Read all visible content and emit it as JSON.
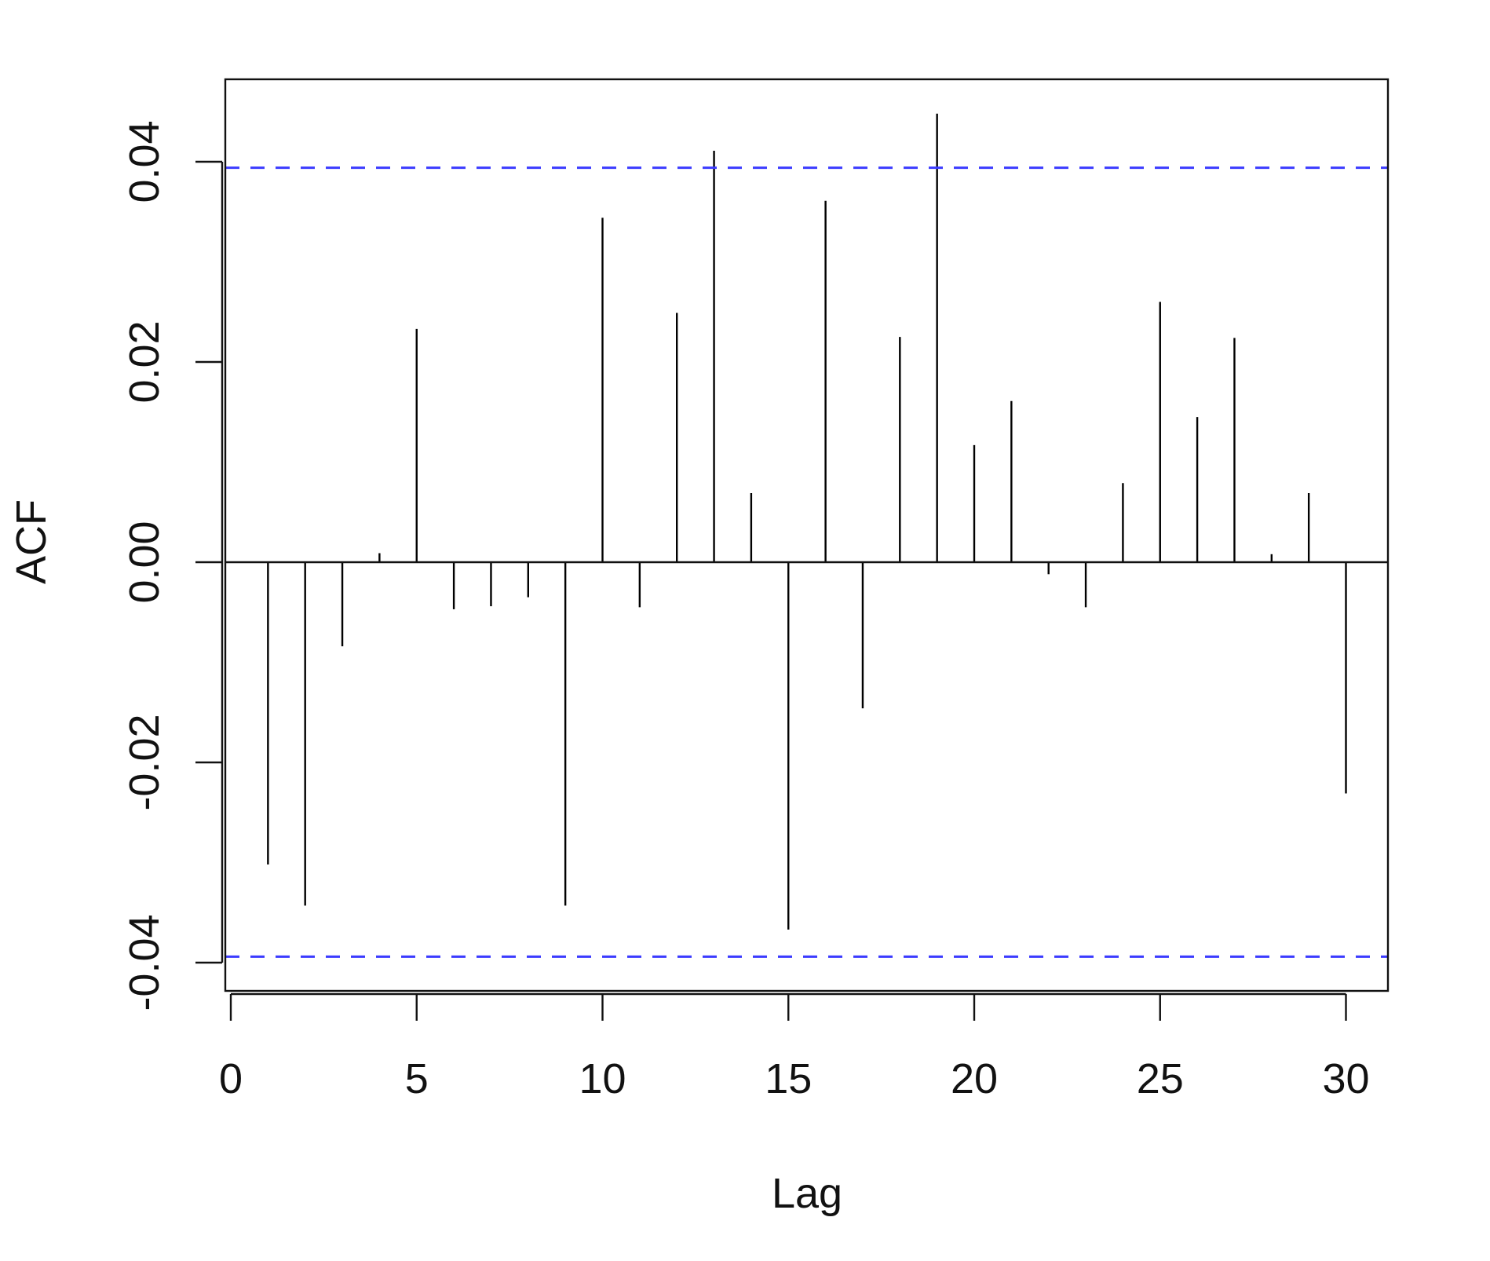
{
  "chart_data": {
    "type": "bar",
    "title": "",
    "xlabel": "Lag",
    "ylabel": "ACF",
    "xlim": [
      0,
      31
    ],
    "ylim": [
      -0.0425,
      0.047
    ],
    "x_ticks": [
      0,
      5,
      10,
      15,
      20,
      25,
      30
    ],
    "x_tick_labels": [
      "0",
      "5",
      "10",
      "15",
      "20",
      "25",
      "30"
    ],
    "y_ticks": [
      -0.04,
      -0.02,
      0.0,
      0.02,
      0.04
    ],
    "y_tick_labels": [
      "-0.04",
      "-0.02",
      "0.00",
      "0.02",
      "0.04"
    ],
    "grid": false,
    "lags": [
      1,
      2,
      3,
      4,
      5,
      6,
      7,
      8,
      9,
      10,
      11,
      12,
      13,
      14,
      15,
      16,
      17,
      18,
      19,
      20,
      21,
      22,
      23,
      24,
      25,
      26,
      27,
      28,
      29,
      30
    ],
    "values": [
      -0.0302,
      -0.0343,
      -0.0084,
      0.0009,
      0.0233,
      -0.0047,
      -0.0044,
      -0.0035,
      -0.0343,
      0.0344,
      -0.0045,
      0.0249,
      0.0411,
      0.0069,
      -0.0367,
      0.0361,
      -0.0146,
      0.0225,
      0.0448,
      0.0117,
      0.0161,
      -0.0012,
      -0.0045,
      0.0079,
      0.026,
      0.0145,
      0.0224,
      0.0008,
      0.0069,
      -0.0231
    ],
    "confidence_bounds": [
      0.0394,
      -0.0394
    ],
    "colors": {
      "spike": "#000000",
      "axis": "#111111",
      "confidence": "#3b3bff"
    }
  }
}
